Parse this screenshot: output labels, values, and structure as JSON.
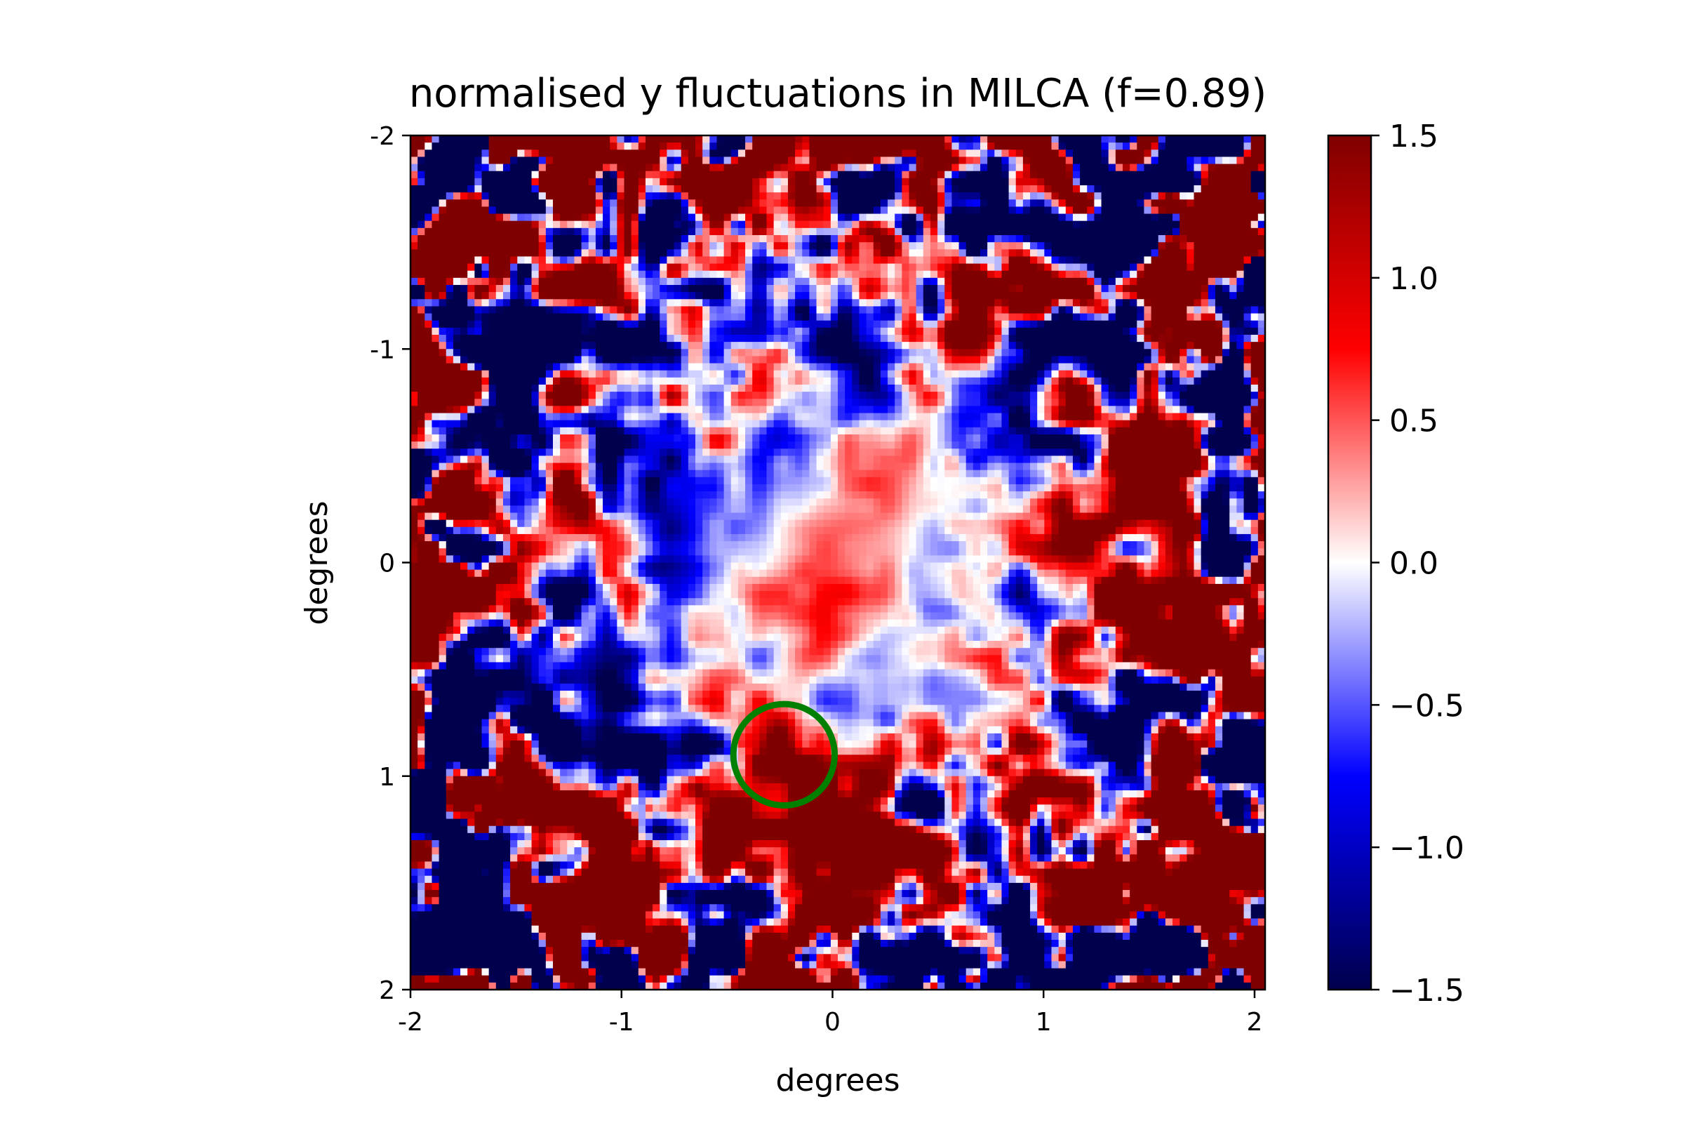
{
  "chart_data": {
    "type": "heatmap",
    "title": "normalised y fluctuations in MILCA (f=0.89)",
    "xlabel": "degrees",
    "ylabel": "degrees",
    "xlim": [
      -2.0,
      2.05
    ],
    "ylim": [
      2.0,
      -2.0
    ],
    "x_ticks": [
      -2,
      -1,
      0,
      1,
      2
    ],
    "x_tick_labels": [
      "-2",
      "-1",
      "0",
      "1",
      "2"
    ],
    "y_ticks": [
      -2,
      -1,
      0,
      1,
      2
    ],
    "y_tick_labels": [
      "-2",
      "-1",
      "0",
      "1",
      "2"
    ],
    "colorbar": {
      "vmin": -1.5,
      "vmax": 1.5,
      "ticks": [
        1.5,
        1.0,
        0.5,
        0.0,
        -0.5,
        -1.0,
        -1.5
      ],
      "tick_labels": [
        "1.5",
        "1.0",
        "0.5",
        "0.0",
        "−0.5",
        "−1.0",
        "−1.5"
      ],
      "colormap": "seismic",
      "colors": [
        "#00004c",
        "#0000ff",
        "#ffffff",
        "#ff0000",
        "#7f0000"
      ]
    },
    "marker": {
      "type": "circle",
      "center": [
        -0.23,
        0.9
      ],
      "radius": 0.24,
      "color": "#008000"
    },
    "field_description_regions": [
      {
        "region": "center",
        "level": "near 0, pale blue and pale red"
      },
      {
        "region": "outer edges",
        "level": "saturated at +1.5 and -1.5"
      },
      {
        "region": "circle",
        "level": "about +1.3"
      }
    ]
  }
}
